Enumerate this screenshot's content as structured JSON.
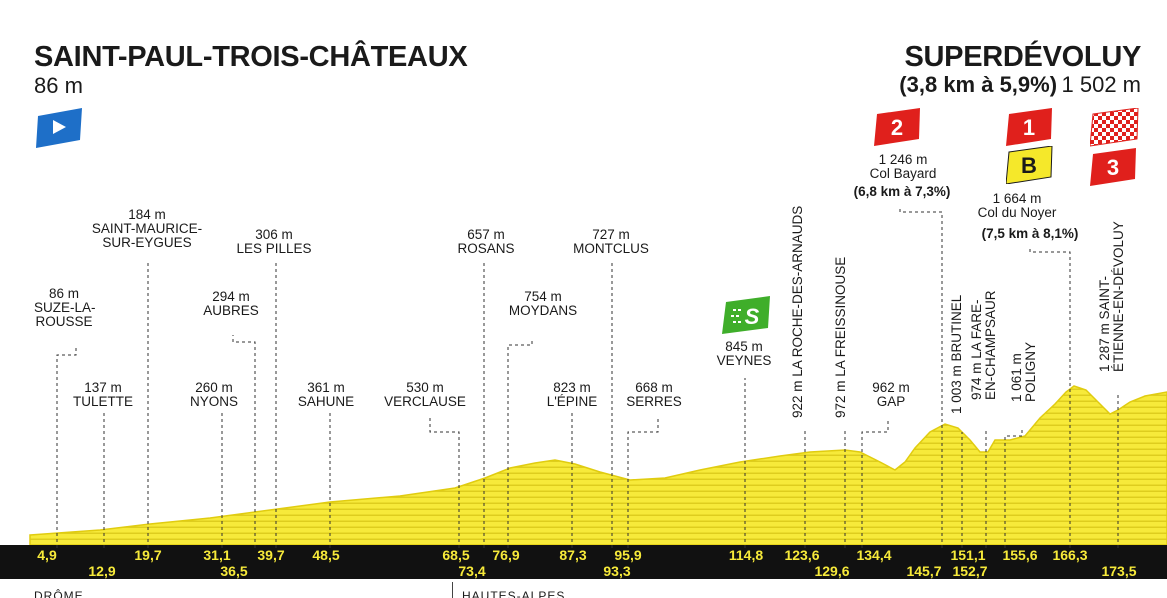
{
  "start": {
    "name": "SAINT-PAUL-TROIS-CHÂTEAUX",
    "altitude": "86 m"
  },
  "finish": {
    "name": "SUPERDÉVOLUY",
    "climb": "(3,8 km à 5,9%)",
    "altitude": "1 502 m"
  },
  "labels": [
    {
      "id": "suze",
      "text": "86 m\nSUZE-LA-\nROUSSE"
    },
    {
      "id": "tulette",
      "text": "137 m\nTULETTE"
    },
    {
      "id": "stmaurice",
      "text": "184 m\nSAINT-MAURICE-\nSUR-EYGUES"
    },
    {
      "id": "nyons",
      "text": "260 m\nNYONS"
    },
    {
      "id": "aubres",
      "text": "294 m\nAUBRES"
    },
    {
      "id": "pilles",
      "text": "306 m\nLES PILLES"
    },
    {
      "id": "sahune",
      "text": "361 m\nSAHUNE"
    },
    {
      "id": "verclause",
      "text": "530 m\nVERCLAUSE"
    },
    {
      "id": "rosans",
      "text": "657 m\nROSANS"
    },
    {
      "id": "moydans",
      "text": "754 m\nMOYDANS"
    },
    {
      "id": "lepine",
      "text": "823 m\nL'ÉPINE"
    },
    {
      "id": "montclus",
      "text": "727 m\nMONTCLUS"
    },
    {
      "id": "serres",
      "text": "668 m\nSERRES"
    },
    {
      "id": "veynes",
      "text": "845 m\nVEYNES"
    },
    {
      "id": "gap",
      "text": "962 m\nGAP"
    },
    {
      "id": "bayard",
      "text": "1 246 m\nCol Bayard"
    },
    {
      "id": "bayard_climb",
      "text": "(6,8 km à 7,3%)"
    },
    {
      "id": "noyer",
      "text": "1 664 m\nCol du Noyer"
    },
    {
      "id": "noyer_climb",
      "text": "(7,5 km à 8,1%)"
    }
  ],
  "vertical_labels": [
    {
      "id": "roche",
      "text": "922 m LA ROCHE-DES-ARNAUDS"
    },
    {
      "id": "freissinouse",
      "text": "972 m LA FREISSINOUSE"
    },
    {
      "id": "brutinel",
      "text": "1 003 m BRUTINEL"
    },
    {
      "id": "fare",
      "text": "974 m LA FARE-\nEN-CHAMPSAUR"
    },
    {
      "id": "poligny",
      "text": "1 061 m\nPOLIGNY"
    },
    {
      "id": "stetienne",
      "text": "1 287 m SAINT-\nÉTIENNE-EN-DÉVOLUY"
    }
  ],
  "markers": [
    {
      "id": "cat2",
      "label": "2",
      "color": "#e0201c"
    },
    {
      "id": "cat1",
      "label": "1",
      "color": "#e0201c"
    },
    {
      "id": "bonus",
      "label": "B",
      "color": "#f5e82a"
    },
    {
      "id": "cat3",
      "label": "3",
      "color": "#e0201c"
    },
    {
      "id": "sprint",
      "label": "S",
      "color": "#3fae2a"
    }
  ],
  "km_upper": [
    "4,9",
    "19,7",
    "31,1",
    "39,7",
    "48,5",
    "68,5",
    "76,9",
    "87,3",
    "95,9",
    "114,8",
    "123,6",
    "134,4",
    "151,1",
    "155,6",
    "166,3"
  ],
  "km_lower": [
    "12,9",
    "36,5",
    "73,4",
    "93,3",
    "129,6",
    "145,7",
    "152,7",
    "173,5"
  ],
  "departments": [
    "DRÔME",
    "HAUTES-ALPES"
  ],
  "colors": {
    "profile": "#f7ea3a",
    "profile_line": "#e6d11a",
    "band": "#111111",
    "km_text": "#f7ea3a",
    "start_flag": "#1e6fc8"
  },
  "icons": [
    "start-flag-icon",
    "finish-flag-icon",
    "sprint-icon"
  ]
}
